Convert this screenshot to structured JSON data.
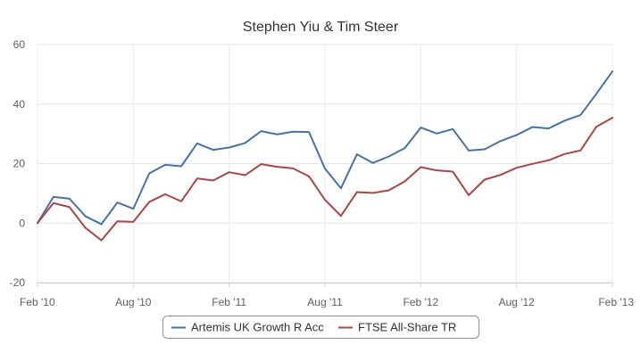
{
  "chart_data": {
    "type": "line",
    "title": "Stephen Yiu & Tim Steer",
    "xlabel": "",
    "ylabel": "",
    "ylim": [
      -20,
      60
    ],
    "yticks": [
      -20,
      0,
      20,
      40,
      60
    ],
    "xlim": [
      "2010-02",
      "2013-02"
    ],
    "x_tick_labels": [
      "Feb '10",
      "Aug '10",
      "Feb '11",
      "Aug '11",
      "Feb '12",
      "Aug '12",
      "Feb '13"
    ],
    "x": [
      "2010-02",
      "2010-03",
      "2010-04",
      "2010-05",
      "2010-06",
      "2010-07",
      "2010-08",
      "2010-09",
      "2010-10",
      "2010-11",
      "2010-12",
      "2011-01",
      "2011-02",
      "2011-03",
      "2011-04",
      "2011-05",
      "2011-06",
      "2011-07",
      "2011-08",
      "2011-09",
      "2011-10",
      "2011-11",
      "2011-12",
      "2012-01",
      "2012-02",
      "2012-03",
      "2012-04",
      "2012-05",
      "2012-06",
      "2012-07",
      "2012-08",
      "2012-09",
      "2012-10",
      "2012-11",
      "2012-12",
      "2013-01",
      "2013-02"
    ],
    "grid": true,
    "legend_position": "bottom-center",
    "series": [
      {
        "name": "Artemis UK Growth R Acc",
        "color": "#4572a7",
        "values": [
          0.0,
          8.8,
          8.2,
          2.3,
          -0.4,
          6.9,
          4.8,
          16.7,
          19.6,
          19.1,
          26.8,
          24.6,
          25.4,
          26.9,
          30.9,
          29.8,
          30.7,
          30.6,
          18.3,
          11.7,
          23.1,
          20.2,
          22.4,
          25.2,
          32.1,
          30.1,
          31.6,
          24.4,
          24.8,
          27.6,
          29.6,
          32.3,
          31.8,
          34.4,
          36.3,
          43.5,
          51.0
        ]
      },
      {
        "name": "FTSE All-Share TR",
        "color": "#aa4643",
        "values": [
          0.0,
          6.7,
          5.4,
          -1.6,
          -5.8,
          0.6,
          0.4,
          7.1,
          9.7,
          7.3,
          15.0,
          14.3,
          17.1,
          16.1,
          19.8,
          18.9,
          18.4,
          15.7,
          7.8,
          2.4,
          10.4,
          10.1,
          11.0,
          14.0,
          18.8,
          17.7,
          17.3,
          9.4,
          14.6,
          16.2,
          18.6,
          19.9,
          21.1,
          23.2,
          24.4,
          32.4,
          35.4
        ]
      }
    ]
  }
}
